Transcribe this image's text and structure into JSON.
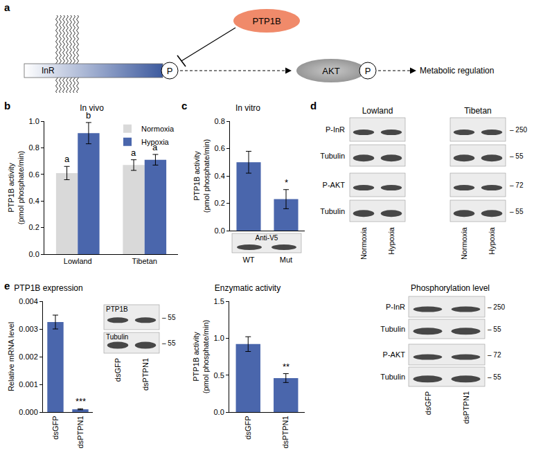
{
  "panel_labels": {
    "a": "a",
    "b": "b",
    "c": "c",
    "d": "d",
    "e": "e"
  },
  "diagram": {
    "receptor": "InR",
    "phosphatase": "PTP1B",
    "kinase": "AKT",
    "phospho": "P",
    "output": "Metabolic regulation"
  },
  "chart_data": [
    {
      "type": "bar",
      "title": "In vivo",
      "categories": [
        "Lowland",
        "Tibetan"
      ],
      "series": [
        {
          "name": "Normoxia",
          "color": "#d9d9d9",
          "values": [
            0.61,
            0.67
          ],
          "errors": [
            0.05,
            0.04
          ]
        },
        {
          "name": "Hypoxia",
          "color": "#4a66ac",
          "values": [
            0.91,
            0.71
          ],
          "errors": [
            0.08,
            0.04
          ]
        }
      ],
      "ylabel": [
        "PTP1B activity",
        "(pmol phosphate/min)"
      ],
      "ylim": [
        0,
        1
      ],
      "yticks": [
        {
          "value": 0,
          "label": "0.0"
        },
        0.2,
        0.4,
        0.6,
        0.8,
        {
          "value": 1,
          "label": "1.0"
        }
      ],
      "legend": "top right",
      "annotations": [
        {
          "category": "Lowland",
          "series": "Normoxia",
          "text": "a"
        },
        {
          "category": "Lowland",
          "series": "Hypoxia",
          "text": "b"
        },
        {
          "category": "Tibetan",
          "series": "Normoxia",
          "text": "a"
        },
        {
          "category": "Tibetan",
          "series": "Hypoxia",
          "text": "a"
        }
      ]
    },
    {
      "type": "bar",
      "title": "In vitro",
      "categories": [
        "WT",
        "Mut"
      ],
      "values": [
        0.5,
        0.23
      ],
      "errors": [
        0.08,
        0.07
      ],
      "color": "#4a66ac",
      "ylabel": [
        "PTP1B activity",
        "(pmol phosphate/min)"
      ],
      "ylim": [
        0,
        0.8
      ],
      "yticks": [
        {
          "value": 0,
          "label": "0.0"
        },
        0.2,
        0.4,
        0.6,
        0.8
      ],
      "annotations": [
        {
          "category": "Mut",
          "text": "*"
        }
      ]
    },
    {
      "type": "bar",
      "title": "PTP1B expression",
      "categories": [
        "dsGFP",
        "dsPTPN1"
      ],
      "values": [
        0.00325,
        0.0001
      ],
      "errors": [
        0.00025,
        2e-05
      ],
      "color": "#4a66ac",
      "ylabel": [
        "Relative mRNA level"
      ],
      "ylim": [
        0,
        0.004
      ],
      "yticks": [
        {
          "value": 0,
          "label": "0.000"
        },
        0.001,
        0.002,
        0.003,
        0.004
      ],
      "annotations": [
        {
          "category": "dsPTPN1",
          "text": "***"
        }
      ]
    },
    {
      "type": "bar",
      "title": "Enzymatic activity",
      "categories": [
        "dsGFP",
        "dsPTPN1"
      ],
      "values": [
        0.92,
        0.46
      ],
      "errors": [
        0.1,
        0.06
      ],
      "color": "#4a66ac",
      "ylabel": [
        "PTP1B activity",
        "(pmol phosphate/min)"
      ],
      "ylim": [
        0,
        1.5
      ],
      "yticks": [
        {
          "value": 0,
          "label": "0.0"
        },
        0.5,
        {
          "value": 1,
          "label": "1.0"
        },
        1.5
      ],
      "annotations": [
        {
          "category": "dsPTPN1",
          "text": "**"
        }
      ]
    }
  ],
  "blots": {
    "c": {
      "rows": [
        {
          "label": "Anti-V5"
        }
      ]
    },
    "d": {
      "groups": [
        "Lowland",
        "Tibetan"
      ],
      "lanes": [
        "Normoxia",
        "Hypoxia"
      ],
      "rows": [
        {
          "label": "P-InR",
          "marker": 250
        },
        {
          "label": "Tubulin",
          "marker": 55
        },
        {
          "label": "P-AKT",
          "marker": 72
        },
        {
          "label": "Tubulin",
          "marker": 55
        }
      ]
    },
    "e_expression": {
      "lanes": [
        "dsGFP",
        "dsPTPN1"
      ],
      "rows": [
        {
          "label": "PTP1B",
          "marker": 55
        },
        {
          "label": "Tubulin",
          "marker": 55
        }
      ]
    },
    "e_phosphorylation": {
      "title": "Phosphorylation level",
      "lanes": [
        "dsGFP",
        "dsPTPN1"
      ],
      "rows": [
        {
          "label": "P-InR",
          "marker": 250
        },
        {
          "label": "Tubulin",
          "marker": 55
        },
        {
          "label": "P-AKT",
          "marker": 72
        },
        {
          "label": "Tubulin",
          "marker": 55
        }
      ]
    }
  }
}
